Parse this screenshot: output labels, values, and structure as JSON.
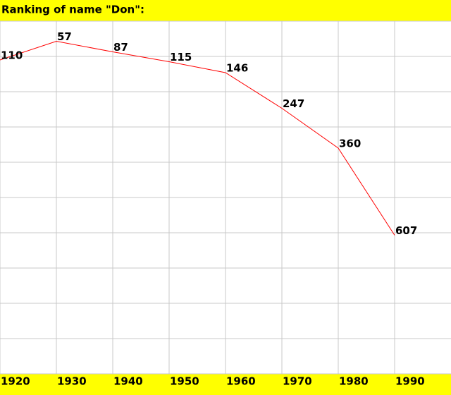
{
  "chart_data": {
    "type": "line",
    "title": "Ranking of name \"Don\":",
    "x": [
      1920,
      1930,
      1940,
      1950,
      1960,
      1970,
      1980,
      1990
    ],
    "series": [
      {
        "name": "Don",
        "color": "#ff0000",
        "values": [
          110,
          57,
          87,
          115,
          146,
          247,
          360,
          607
        ]
      }
    ],
    "xlim": [
      1920,
      2000
    ],
    "xticks": [
      1920,
      1930,
      1940,
      1950,
      1960,
      1970,
      1980,
      1990
    ],
    "ylim": [
      0,
      1000
    ],
    "yticks": [
      0,
      100,
      200,
      300,
      400,
      500,
      600,
      700,
      800,
      900,
      1000
    ],
    "y_inverted": true,
    "grid": true,
    "band_color": "#ffff00"
  }
}
